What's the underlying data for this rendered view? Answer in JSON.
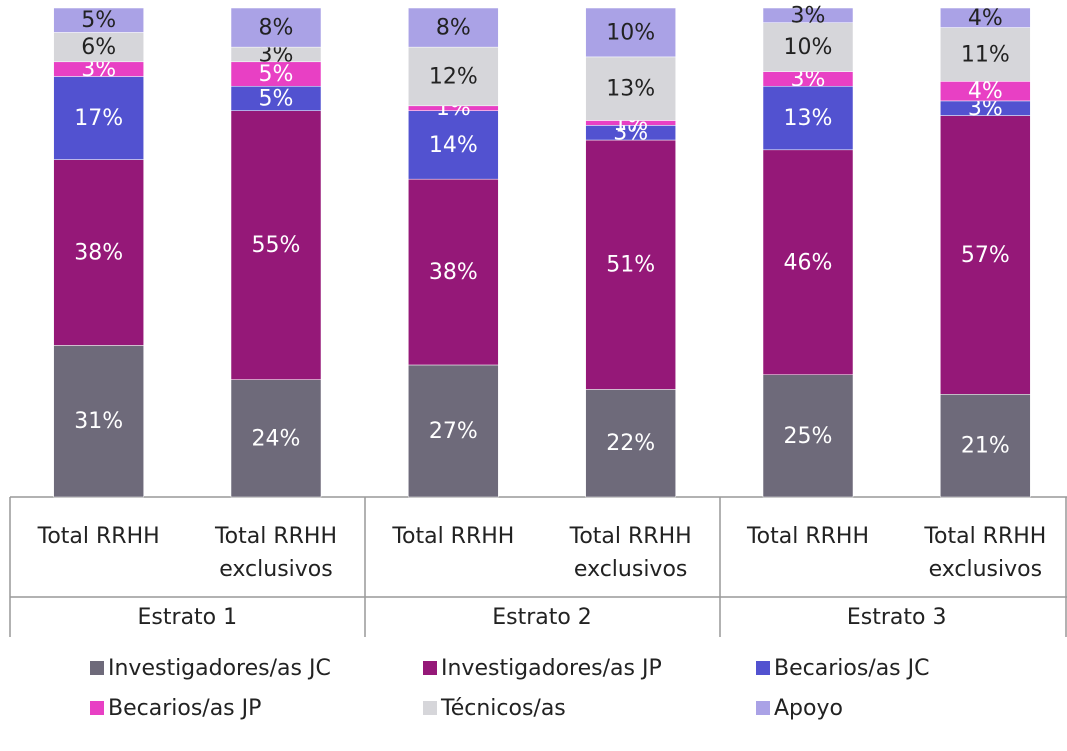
{
  "chart_data": {
    "type": "stacked_bar",
    "categories": [
      "Total RRHH",
      "Total RRHH exclusivos",
      "Total RRHH",
      "Total RRHH exclusivos",
      "Total RRHH",
      "Total RRHH exclusivos"
    ],
    "groups": [
      "Estrato 1",
      "Estrato 2",
      "Estrato 3"
    ],
    "series": [
      {
        "name": "Investigadores/as JC",
        "color": "#6e6a7a",
        "values": [
          31,
          24,
          27,
          22,
          25,
          21
        ],
        "value_labels": [
          "31%",
          "24%",
          "27%",
          "22%",
          "25%",
          "21%"
        ]
      },
      {
        "name": "Investigadores/as JP",
        "color": "#951878",
        "values": [
          38,
          55,
          38,
          51,
          46,
          57
        ],
        "value_labels": [
          "38%",
          "55%",
          "38%",
          "51%",
          "46%",
          "57%"
        ]
      },
      {
        "name": "Becarios/as JC",
        "color": "#5252d0",
        "values": [
          17,
          5,
          14,
          3,
          13,
          3
        ],
        "value_labels": [
          "17%",
          "5%",
          "14%",
          "3%",
          "13%",
          "3%"
        ]
      },
      {
        "name": "Becarios/as JP",
        "color": "#e840c4",
        "values": [
          3,
          5,
          1,
          1,
          3,
          4
        ],
        "value_labels": [
          "3%",
          "5%",
          "1%",
          "1%",
          "3%",
          "4%"
        ]
      },
      {
        "name": "Técnicos/as",
        "color": "#d6d6da",
        "values": [
          6,
          3,
          12,
          13,
          10,
          11
        ],
        "value_labels": [
          "6%",
          "3%",
          "12%",
          "13%",
          "10%",
          "11%"
        ]
      },
      {
        "name": "Apoyo",
        "color": "#aaa2e6",
        "values": [
          5,
          8,
          8,
          10,
          3,
          4
        ],
        "value_labels": [
          "5%",
          "8%",
          "8%",
          "10%",
          "3%",
          "4%"
        ]
      }
    ]
  }
}
